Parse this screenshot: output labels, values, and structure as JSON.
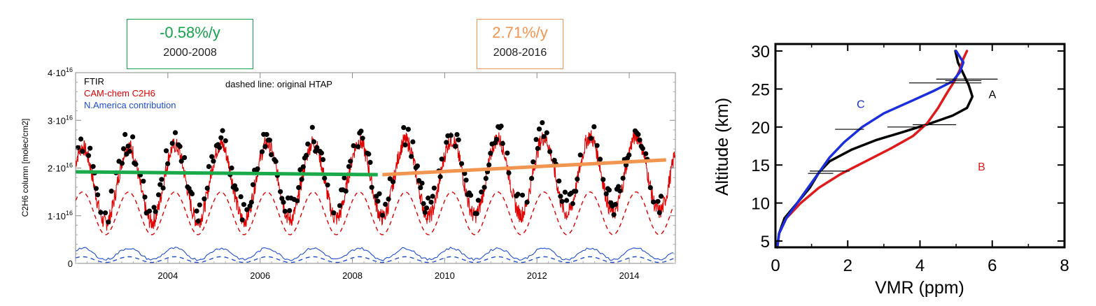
{
  "chart_data": [
    {
      "type": "line",
      "ylabel": "C2H6 column [molec/cm2]",
      "xlim": [
        2002.0,
        2015.0
      ],
      "ylim": [
        0,
        4
      ],
      "y_unit_note": "x1e16",
      "x_ticks": [
        2004,
        2006,
        2008,
        2010,
        2012,
        2014
      ],
      "y_ticks": [
        "0",
        "1·10",
        "2·10",
        "3·10",
        "4·10"
      ],
      "y_tick_exp": "16",
      "legend": {
        "placement": "top-left",
        "entries": [
          {
            "name": "FTIR",
            "color": "#000000"
          },
          {
            "name": "CAM-chem C2H6",
            "color": "#e00000"
          },
          {
            "name": "N.America contribution",
            "color": "#1f4fd0"
          }
        ]
      },
      "annotation": "dashed line: original HTAP",
      "series": [
        {
          "name": "FTIR",
          "kind": "points",
          "color": "#000000",
          "seasonal": {
            "mean": 1.9,
            "amp": 0.75,
            "peak_phase": 0.15
          }
        },
        {
          "name": "CAM-chem C2H6",
          "kind": "line",
          "color": "#e00000",
          "seasonal": {
            "mean": 1.75,
            "amp": 0.8,
            "peak_phase": 0.15
          }
        },
        {
          "name": "original HTAP",
          "kind": "dashed",
          "color": "#e00000",
          "seasonal": {
            "mean": 1.05,
            "amp": 0.45,
            "peak_phase": 0.15
          }
        },
        {
          "name": "N.America contribution",
          "kind": "line",
          "color": "#1f4fd0",
          "seasonal": {
            "mean": 0.2,
            "amp": 0.12,
            "peak_phase": 0.15
          }
        },
        {
          "name": "N.America contribution (original HTAP)",
          "kind": "dashed",
          "color": "#1f4fd0",
          "seasonal": {
            "mean": 0.08,
            "amp": 0.06,
            "peak_phase": 0.15
          }
        }
      ],
      "trends": [
        {
          "rate": "-0.58%/y",
          "period": "2000-2008",
          "color": "#1aaa4a",
          "x": [
            2002.0,
            2008.55
          ],
          "y": [
            1.92,
            1.86
          ]
        },
        {
          "rate": "2.71%/y",
          "period": "2008-2016",
          "color": "#f29550",
          "x": [
            2008.65,
            2014.8
          ],
          "y": [
            1.86,
            2.17
          ]
        }
      ]
    },
    {
      "type": "line",
      "xlabel": "VMR (ppm)",
      "ylabel": "Altitude (km)",
      "xlim": [
        0,
        8
      ],
      "ylim": [
        4,
        30
      ],
      "x_ticks": [
        0,
        2,
        4,
        6,
        8
      ],
      "y_ticks": [
        5,
        10,
        15,
        20,
        25,
        30
      ],
      "series": [
        {
          "name": "A",
          "color": "#000000",
          "points": [
            [
              0.05,
              4
            ],
            [
              0.1,
              6
            ],
            [
              0.25,
              8
            ],
            [
              0.6,
              10
            ],
            [
              0.95,
              12
            ],
            [
              1.2,
              14
            ],
            [
              1.5,
              15.5
            ],
            [
              2.1,
              17
            ],
            [
              2.8,
              18.3
            ],
            [
              3.5,
              19.3
            ],
            [
              4.3,
              20.5
            ],
            [
              4.9,
              21.5
            ],
            [
              5.3,
              22.5
            ],
            [
              5.45,
              24
            ],
            [
              5.35,
              25.5
            ],
            [
              5.2,
              27
            ],
            [
              5.05,
              28.5
            ],
            [
              4.98,
              30
            ]
          ]
        },
        {
          "name": "B",
          "color": "#e01a1a",
          "points": [
            [
              0.05,
              4
            ],
            [
              0.1,
              6
            ],
            [
              0.3,
              8
            ],
            [
              0.7,
              10
            ],
            [
              1.2,
              12
            ],
            [
              1.8,
              13.8
            ],
            [
              2.5,
              15.5
            ],
            [
              3.2,
              17.2
            ],
            [
              3.8,
              18.8
            ],
            [
              4.2,
              20.5
            ],
            [
              4.5,
              22.5
            ],
            [
              4.75,
              24.5
            ],
            [
              4.95,
              26
            ],
            [
              5.1,
              27.5
            ],
            [
              5.2,
              29
            ],
            [
              5.3,
              30
            ]
          ]
        },
        {
          "name": "C",
          "color": "#1a2ee0",
          "points": [
            [
              0.05,
              4
            ],
            [
              0.1,
              6
            ],
            [
              0.3,
              8
            ],
            [
              0.6,
              10
            ],
            [
              0.9,
              12
            ],
            [
              1.2,
              14
            ],
            [
              1.5,
              16
            ],
            [
              1.9,
              18
            ],
            [
              2.4,
              20
            ],
            [
              3.0,
              21.8
            ],
            [
              3.8,
              23.5
            ],
            [
              4.4,
              24.8
            ],
            [
              4.9,
              26
            ],
            [
              5.1,
              27.2
            ],
            [
              5.2,
              28.5
            ],
            [
              5.0,
              30
            ]
          ]
        }
      ],
      "curve_labels": {
        "A": "A",
        "B": "B",
        "C": "C"
      },
      "label_positions": {
        "A": [
          5.9,
          23.8
        ],
        "B": [
          5.6,
          14.3
        ],
        "C": [
          2.25,
          22.5
        ]
      },
      "error_bars": [
        {
          "x": 5.3,
          "y": 26.3,
          "dx": 0.85
        },
        {
          "x": 5.2,
          "y": 26.1,
          "dx": 0.5
        },
        {
          "x": 4.7,
          "y": 25.8,
          "dx": 1.0
        },
        {
          "x": 4.4,
          "y": 20.3,
          "dx": 0.6
        },
        {
          "x": 3.6,
          "y": 20.0,
          "dx": 0.5
        },
        {
          "x": 2.05,
          "y": 19.7,
          "dx": 0.4
        },
        {
          "x": 1.5,
          "y": 14.2,
          "dx": 0.55
        },
        {
          "x": 1.25,
          "y": 13.9,
          "dx": 0.35
        }
      ]
    }
  ]
}
